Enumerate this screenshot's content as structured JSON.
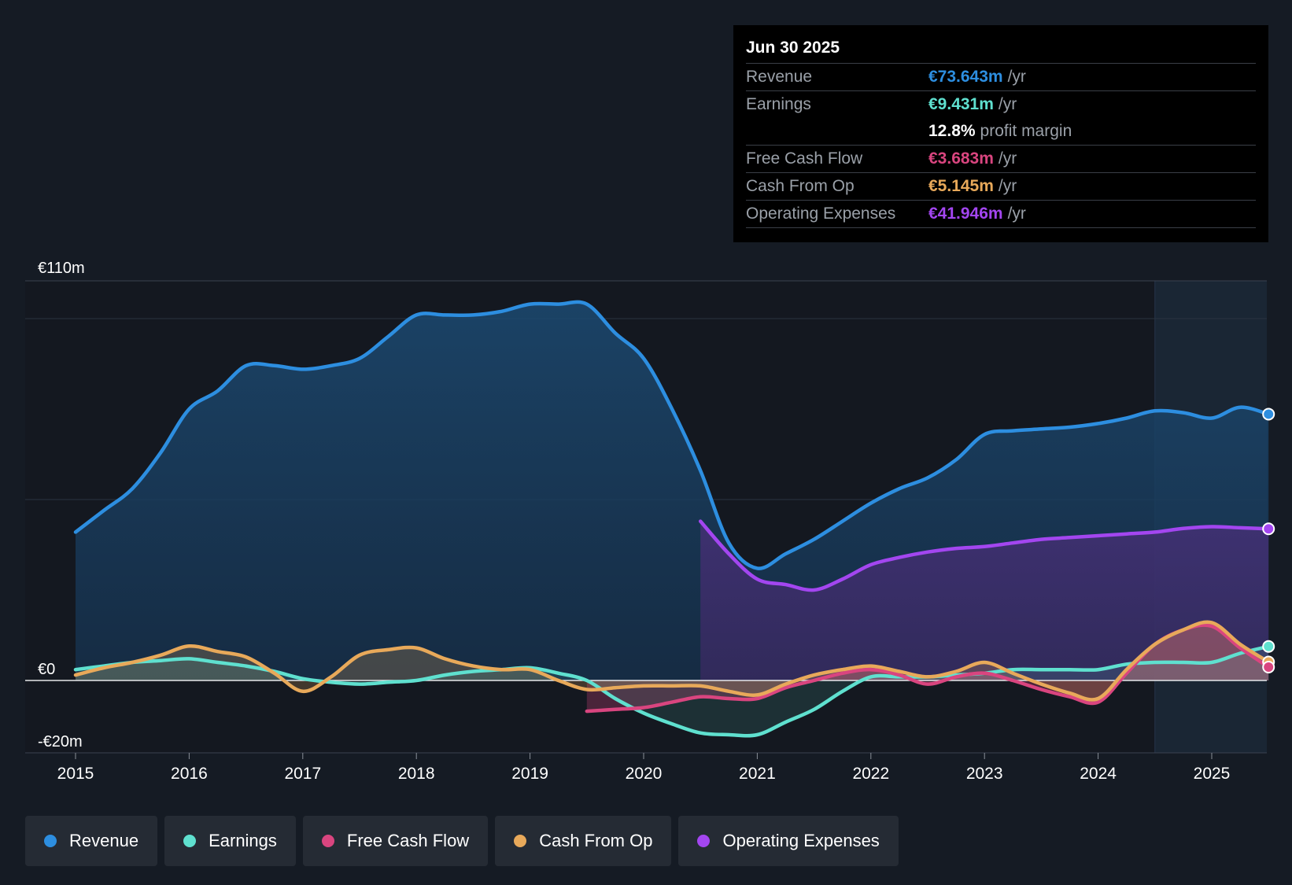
{
  "tooltip": {
    "date": "Jun 30 2025",
    "rows": [
      {
        "label": "Revenue",
        "value": "€73.643m",
        "unit": "/yr",
        "color": "#2d8ee0"
      },
      {
        "label": "Earnings",
        "value": "€9.431m",
        "unit": "/yr",
        "color": "#5fe0cf"
      },
      {
        "label": "",
        "value": "12.8%",
        "unit": "profit margin",
        "color": "#ffffff"
      },
      {
        "label": "Free Cash Flow",
        "value": "€3.683m",
        "unit": "/yr",
        "color": "#d9457f"
      },
      {
        "label": "Cash From Op",
        "value": "€5.145m",
        "unit": "/yr",
        "color": "#e8a95a"
      },
      {
        "label": "Operating Expenses",
        "value": "€41.946m",
        "unit": "/yr",
        "color": "#a346f0"
      }
    ]
  },
  "legend": [
    {
      "label": "Revenue",
      "color": "#2d8ee0"
    },
    {
      "label": "Earnings",
      "color": "#5fe0cf"
    },
    {
      "label": "Free Cash Flow",
      "color": "#d9457f"
    },
    {
      "label": "Cash From Op",
      "color": "#e8a95a"
    },
    {
      "label": "Operating Expenses",
      "color": "#a346f0"
    }
  ],
  "chart_data": {
    "type": "area",
    "title": "",
    "xlabel": "",
    "ylabel": "",
    "ylim": [
      -20,
      110
    ],
    "xlim": [
      2015,
      2025.5
    ],
    "y_tick_labels": [
      {
        "value": 110,
        "label": "€110m"
      },
      {
        "value": 0,
        "label": "€0"
      },
      {
        "value": -20,
        "label": "-€20m"
      }
    ],
    "gridlines": [
      100,
      50
    ],
    "x_ticks": [
      2015,
      2016,
      2017,
      2018,
      2019,
      2020,
      2021,
      2022,
      2023,
      2024,
      2025
    ],
    "x_tick_labels": [
      "2015",
      "2016",
      "2017",
      "2018",
      "2019",
      "2020",
      "2021",
      "2022",
      "2023",
      "2024",
      "2025"
    ],
    "forecast_start": 2024.5,
    "series": [
      {
        "name": "Revenue",
        "color": "#2d8ee0",
        "points": [
          [
            2015,
            41
          ],
          [
            2015.25,
            47
          ],
          [
            2015.5,
            53
          ],
          [
            2015.75,
            63
          ],
          [
            2016,
            75
          ],
          [
            2016.25,
            80
          ],
          [
            2016.5,
            87
          ],
          [
            2016.75,
            87
          ],
          [
            2017,
            86
          ],
          [
            2017.25,
            87
          ],
          [
            2017.5,
            89
          ],
          [
            2017.75,
            95
          ],
          [
            2018,
            101
          ],
          [
            2018.25,
            101
          ],
          [
            2018.5,
            101
          ],
          [
            2018.75,
            102
          ],
          [
            2019,
            104
          ],
          [
            2019.25,
            104
          ],
          [
            2019.5,
            104
          ],
          [
            2019.75,
            96
          ],
          [
            2020,
            89
          ],
          [
            2020.25,
            75
          ],
          [
            2020.5,
            58
          ],
          [
            2020.75,
            38
          ],
          [
            2021,
            31
          ],
          [
            2021.25,
            35
          ],
          [
            2021.5,
            39
          ],
          [
            2021.75,
            44
          ],
          [
            2022,
            49
          ],
          [
            2022.25,
            53
          ],
          [
            2022.5,
            56
          ],
          [
            2022.75,
            61
          ],
          [
            2023,
            68
          ],
          [
            2023.25,
            69
          ],
          [
            2023.5,
            69.5
          ],
          [
            2023.75,
            70
          ],
          [
            2024,
            71
          ],
          [
            2024.25,
            72.5
          ],
          [
            2024.5,
            74.5
          ],
          [
            2024.75,
            74
          ],
          [
            2025,
            72.5
          ],
          [
            2025.25,
            75.5
          ],
          [
            2025.5,
            73.6
          ]
        ]
      },
      {
        "name": "Operating Expenses",
        "color": "#a346f0",
        "points": [
          [
            2020.5,
            44
          ],
          [
            2020.75,
            35
          ],
          [
            2021,
            28
          ],
          [
            2021.25,
            26.5
          ],
          [
            2021.5,
            25
          ],
          [
            2021.75,
            28
          ],
          [
            2022,
            32
          ],
          [
            2022.25,
            34
          ],
          [
            2022.5,
            35.5
          ],
          [
            2022.75,
            36.5
          ],
          [
            2023,
            37
          ],
          [
            2023.25,
            38
          ],
          [
            2023.5,
            39
          ],
          [
            2023.75,
            39.5
          ],
          [
            2024,
            40
          ],
          [
            2024.25,
            40.5
          ],
          [
            2024.5,
            41
          ],
          [
            2024.75,
            42
          ],
          [
            2025,
            42.5
          ],
          [
            2025.25,
            42.2
          ],
          [
            2025.5,
            41.9
          ]
        ]
      },
      {
        "name": "Earnings",
        "color": "#5fe0cf",
        "points": [
          [
            2015,
            3
          ],
          [
            2015.25,
            4
          ],
          [
            2015.5,
            5
          ],
          [
            2015.75,
            5.5
          ],
          [
            2016,
            6
          ],
          [
            2016.25,
            5
          ],
          [
            2016.5,
            4
          ],
          [
            2016.75,
            2.5
          ],
          [
            2017,
            0.5
          ],
          [
            2017.25,
            -0.5
          ],
          [
            2017.5,
            -1
          ],
          [
            2017.75,
            -0.5
          ],
          [
            2018,
            0
          ],
          [
            2018.25,
            1.5
          ],
          [
            2018.5,
            2.5
          ],
          [
            2018.75,
            3
          ],
          [
            2019,
            3.5
          ],
          [
            2019.25,
            2
          ],
          [
            2019.5,
            0
          ],
          [
            2019.75,
            -5
          ],
          [
            2020,
            -9
          ],
          [
            2020.25,
            -12
          ],
          [
            2020.5,
            -14.5
          ],
          [
            2020.75,
            -15
          ],
          [
            2021,
            -15
          ],
          [
            2021.25,
            -11.5
          ],
          [
            2021.5,
            -8
          ],
          [
            2021.75,
            -3
          ],
          [
            2022,
            1
          ],
          [
            2022.25,
            1
          ],
          [
            2022.5,
            1
          ],
          [
            2022.75,
            1.5
          ],
          [
            2023,
            2
          ],
          [
            2023.25,
            3
          ],
          [
            2023.5,
            3
          ],
          [
            2023.75,
            3
          ],
          [
            2024,
            3
          ],
          [
            2024.25,
            4.5
          ],
          [
            2024.5,
            5
          ],
          [
            2024.75,
            5
          ],
          [
            2025,
            5
          ],
          [
            2025.25,
            7.5
          ],
          [
            2025.5,
            9.4
          ]
        ]
      },
      {
        "name": "Free Cash Flow",
        "color": "#d9457f",
        "points": [
          [
            2019.5,
            -8.5
          ],
          [
            2019.75,
            -8
          ],
          [
            2020,
            -7.5
          ],
          [
            2020.25,
            -6
          ],
          [
            2020.5,
            -4.5
          ],
          [
            2020.75,
            -5
          ],
          [
            2021,
            -5
          ],
          [
            2021.25,
            -2
          ],
          [
            2021.5,
            0
          ],
          [
            2021.75,
            2
          ],
          [
            2022,
            3
          ],
          [
            2022.25,
            1.5
          ],
          [
            2022.5,
            -1
          ],
          [
            2022.75,
            1
          ],
          [
            2023,
            2
          ],
          [
            2023.25,
            0
          ],
          [
            2023.5,
            -2.5
          ],
          [
            2023.75,
            -4.5
          ],
          [
            2024,
            -6
          ],
          [
            2024.25,
            2
          ],
          [
            2024.5,
            10
          ],
          [
            2024.75,
            14
          ],
          [
            2025,
            15
          ],
          [
            2025.25,
            9
          ],
          [
            2025.5,
            3.7
          ]
        ]
      },
      {
        "name": "Cash From Op",
        "color": "#e8a95a",
        "points": [
          [
            2015,
            1.5
          ],
          [
            2015.25,
            3.5
          ],
          [
            2015.5,
            5
          ],
          [
            2015.75,
            7
          ],
          [
            2016,
            9.5
          ],
          [
            2016.25,
            8
          ],
          [
            2016.5,
            6.5
          ],
          [
            2016.75,
            2
          ],
          [
            2017,
            -3
          ],
          [
            2017.25,
            1
          ],
          [
            2017.5,
            7
          ],
          [
            2017.75,
            8.5
          ],
          [
            2018,
            9
          ],
          [
            2018.25,
            6
          ],
          [
            2018.5,
            4
          ],
          [
            2018.75,
            3
          ],
          [
            2019,
            3
          ],
          [
            2019.25,
            0
          ],
          [
            2019.5,
            -2.5
          ],
          [
            2019.75,
            -2
          ],
          [
            2020,
            -1.5
          ],
          [
            2020.25,
            -1.5
          ],
          [
            2020.5,
            -1.5
          ],
          [
            2020.75,
            -3
          ],
          [
            2021,
            -4
          ],
          [
            2021.25,
            -1
          ],
          [
            2021.5,
            1.5
          ],
          [
            2021.75,
            3
          ],
          [
            2022,
            4
          ],
          [
            2022.25,
            2.5
          ],
          [
            2022.5,
            1
          ],
          [
            2022.75,
            2.5
          ],
          [
            2023,
            5
          ],
          [
            2023.25,
            2
          ],
          [
            2023.5,
            -1
          ],
          [
            2023.75,
            -3.5
          ],
          [
            2024,
            -5
          ],
          [
            2024.25,
            3
          ],
          [
            2024.5,
            10
          ],
          [
            2024.75,
            14
          ],
          [
            2025,
            16
          ],
          [
            2025.25,
            10
          ],
          [
            2025.5,
            5.1
          ]
        ]
      }
    ]
  }
}
